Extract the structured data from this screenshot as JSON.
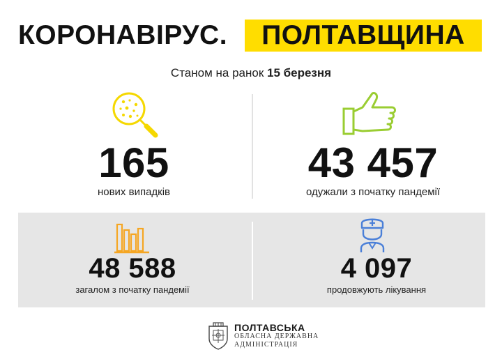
{
  "header": {
    "title_left": "КОРОНАВІРУС.",
    "title_right": "ПОЛТАВЩИНА",
    "accent_color": "#ffdd00"
  },
  "subtitle": {
    "prefix": "Станом на ранок",
    "date": "15 березня"
  },
  "stats": {
    "new_cases": {
      "value": "165",
      "label": "нових випадків",
      "icon": "virus-magnifier-icon",
      "icon_color": "#f5d800"
    },
    "recovered": {
      "value": "43 457",
      "label": "одужали з початку пандемії",
      "icon": "thumbs-up-icon",
      "icon_color": "#9acd32"
    },
    "total": {
      "value": "48 588",
      "label": "загалом з початку пандемії",
      "icon": "bar-chart-icon",
      "icon_color": "#f5a623"
    },
    "treatment": {
      "value": "4 097",
      "label": "продовжують лікування",
      "icon": "doctor-icon",
      "icon_color": "#4a7fd8"
    }
  },
  "footer": {
    "line1": "ПОЛТАВСЬКА",
    "line2": "ОБЛАСНА ДЕРЖАВНА",
    "line3": "АДМІНІСТРАЦІЯ",
    "logo": "poltava-coat-of-arms-icon"
  }
}
